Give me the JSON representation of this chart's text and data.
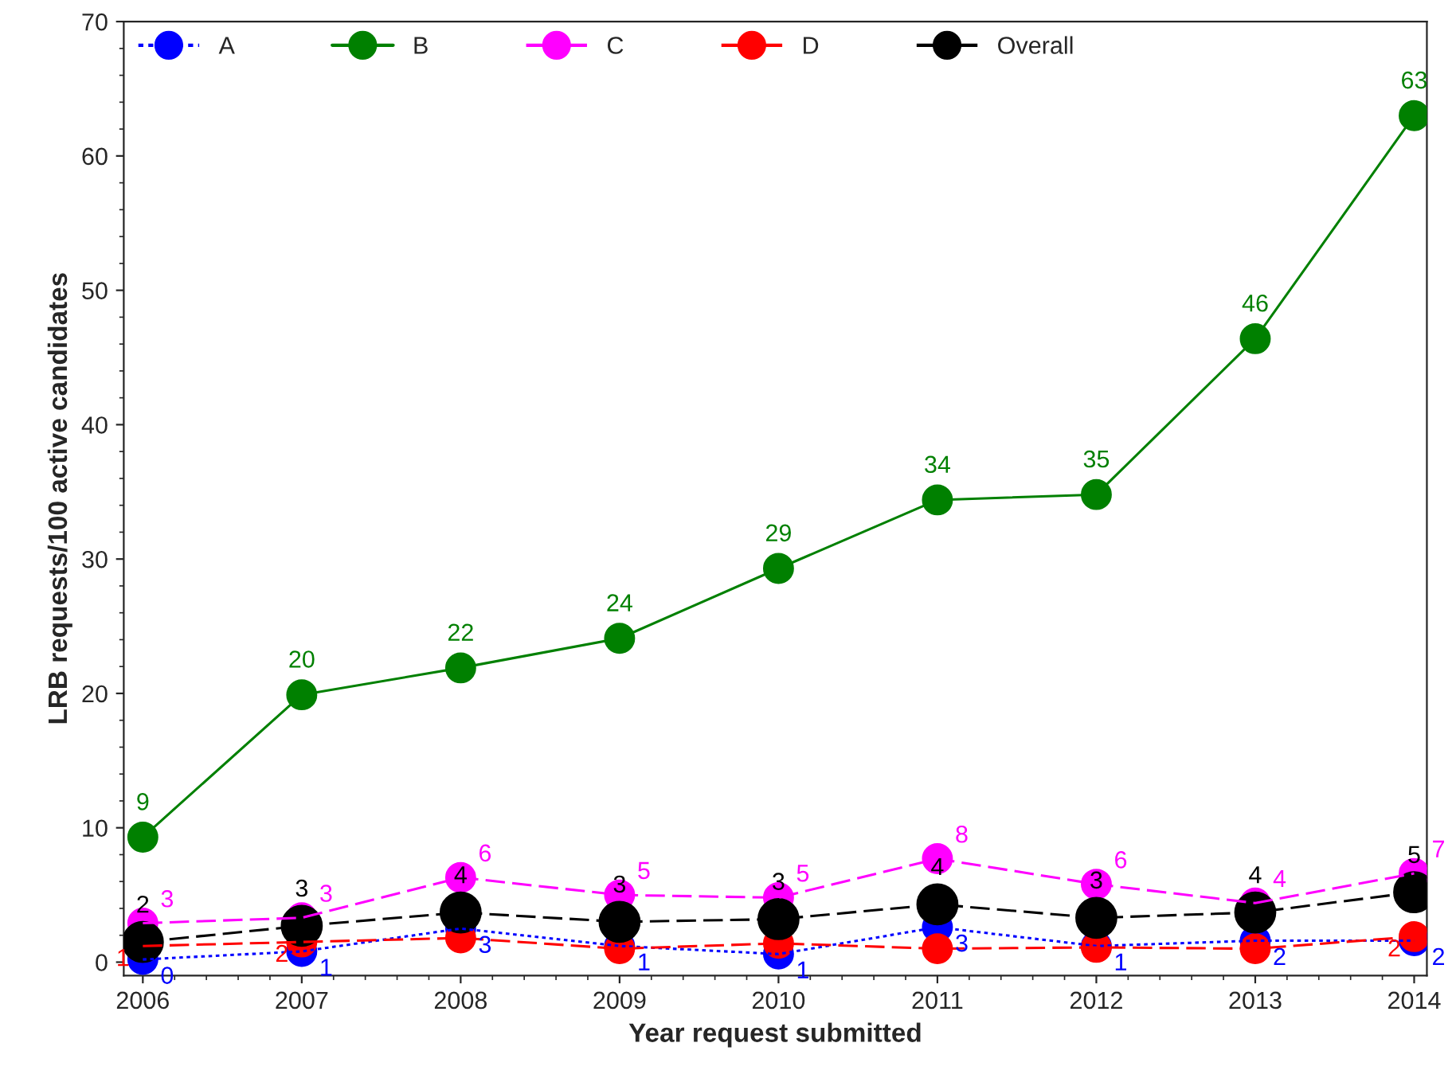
{
  "chart_data": {
    "type": "line",
    "xlabel": "Year request submitted",
    "ylabel": "LRB requests/100 active candidates",
    "x": [
      2006,
      2007,
      2008,
      2009,
      2010,
      2011,
      2012,
      2013,
      2014
    ],
    "xlim": [
      2005.88,
      2014.08
    ],
    "xticks": [
      2006,
      2007,
      2008,
      2009,
      2010,
      2011,
      2012,
      2013,
      2014
    ],
    "ylim": [
      -1,
      70
    ],
    "yticks": [
      0,
      10,
      20,
      30,
      40,
      50,
      60,
      70
    ],
    "legend": "top",
    "marker": "circle",
    "grid": false,
    "series": [
      {
        "name": "A",
        "color": "#0000ff",
        "line_style": "dotted",
        "values": [
          0.2,
          0.8,
          2.5,
          1.2,
          0.6,
          2.6,
          1.2,
          1.6,
          1.6
        ],
        "value_labels": [
          "0",
          "1",
          "3",
          "1",
          "1",
          "3",
          "1",
          "2",
          "2"
        ]
      },
      {
        "name": "B",
        "color": "#008000",
        "line_style": "solid",
        "values": [
          9.3,
          19.9,
          21.9,
          24.1,
          29.3,
          34.4,
          34.8,
          46.4,
          63.0
        ],
        "value_labels": [
          "9",
          "20",
          "22",
          "24",
          "29",
          "34",
          "35",
          "46",
          "63"
        ]
      },
      {
        "name": "C",
        "color": "#ff00ff",
        "line_style": "dashed",
        "values": [
          2.9,
          3.3,
          6.3,
          5.0,
          4.8,
          7.7,
          5.8,
          4.4,
          6.6
        ],
        "value_labels": [
          "3",
          "3",
          "6",
          "5",
          "5",
          "8",
          "6",
          "4",
          "7"
        ]
      },
      {
        "name": "D",
        "color": "#ff0000",
        "line_style": "dashed",
        "values": [
          1.2,
          1.5,
          1.8,
          1.0,
          1.4,
          1.0,
          1.1,
          1.0,
          1.9
        ],
        "value_labels": [
          "1",
          "2",
          null,
          null,
          null,
          null,
          null,
          null,
          "2"
        ]
      },
      {
        "name": "Overall",
        "color": "#000000",
        "line_style": "dashed",
        "values": [
          1.5,
          2.7,
          3.7,
          3.0,
          3.2,
          4.3,
          3.3,
          3.7,
          5.2
        ],
        "value_labels": [
          "2",
          "3",
          "4",
          "3",
          "3",
          "4",
          "3",
          "4",
          "5"
        ]
      }
    ]
  }
}
